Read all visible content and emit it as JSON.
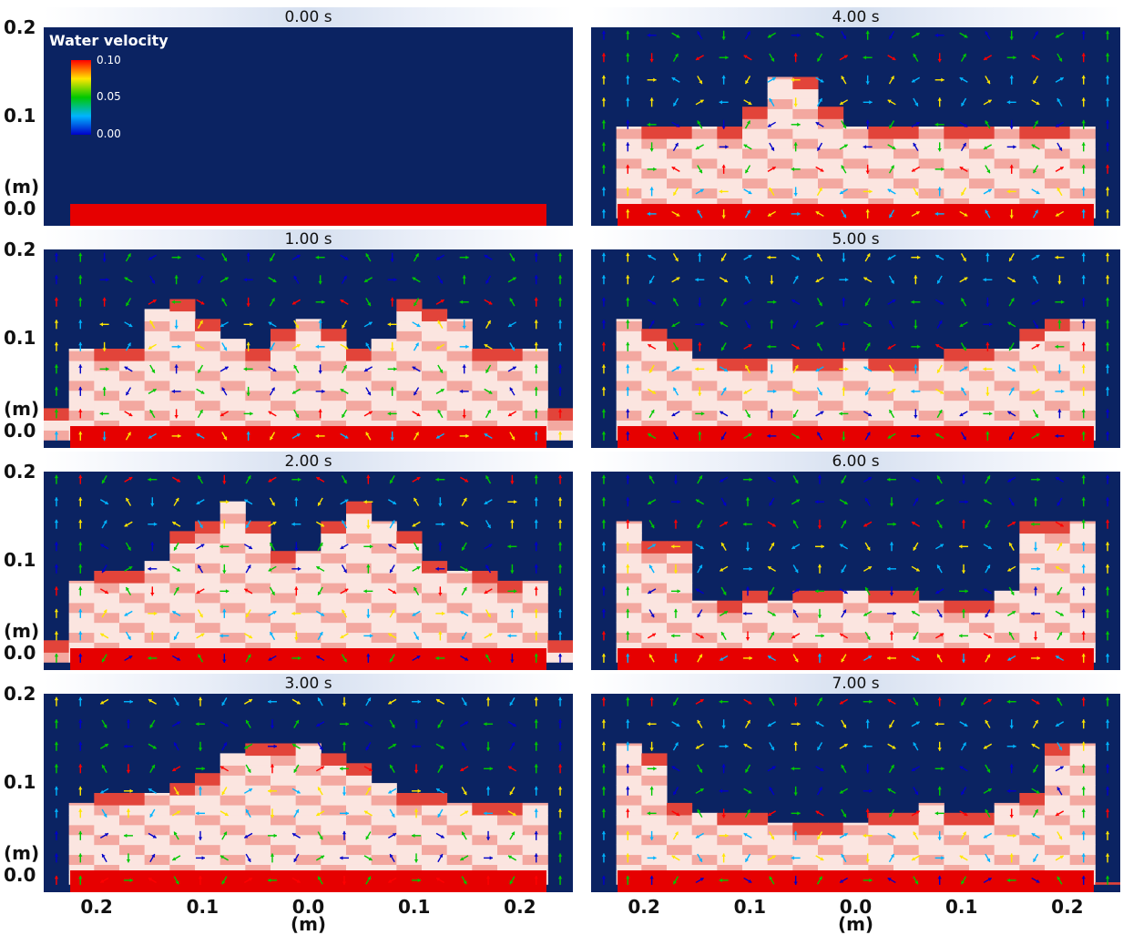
{
  "chart_data": {
    "type": "heatmap",
    "description_units": "vector field over tank cross-section",
    "colorbar": {
      "title": "Water velocity",
      "ticks": [
        "0.10",
        "0.05",
        "0.00"
      ],
      "range": [
        0.0,
        0.1
      ],
      "colors": [
        "#0000c8",
        "#00b4ff",
        "#00c800",
        "#ffe600",
        "#ff0000"
      ]
    },
    "colors": {
      "background": "#0b2362",
      "bed": "#e60000",
      "sediment_light": "#fbe5e0",
      "sediment_mid": "#f3a8a0",
      "sediment_dark": "#e2443a"
    },
    "y_axis": {
      "ticks": [
        "0.2",
        "0.1",
        "(m)",
        "0.0"
      ],
      "range": [
        0.0,
        0.2
      ]
    },
    "x_axis": {
      "ticks": [
        "0.2",
        "0.1",
        "0.0",
        "0.1",
        "0.2"
      ],
      "label": "(m)",
      "range": [
        -0.25,
        0.25
      ]
    },
    "panels": [
      {
        "time": "0.00 s",
        "arrows": false,
        "profile": []
      },
      {
        "time": "1.00 s",
        "arrows": true,
        "profile": [
          0.04,
          0.1,
          0.1,
          0.1,
          0.14,
          0.15,
          0.13,
          0.11,
          0.1,
          0.12,
          0.13,
          0.12,
          0.1,
          0.11,
          0.15,
          0.14,
          0.13,
          0.1,
          0.1,
          0.1,
          0.04
        ]
      },
      {
        "time": "2.00 s",
        "arrows": true,
        "profile": [
          0.03,
          0.09,
          0.1,
          0.1,
          0.11,
          0.14,
          0.15,
          0.17,
          0.15,
          0.12,
          0.12,
          0.15,
          0.17,
          0.15,
          0.14,
          0.11,
          0.1,
          0.1,
          0.09,
          0.09,
          0.03
        ]
      },
      {
        "time": "3.00 s",
        "arrows": true,
        "profile": [
          0.0,
          0.09,
          0.1,
          0.1,
          0.1,
          0.11,
          0.12,
          0.14,
          0.15,
          0.15,
          0.15,
          0.14,
          0.13,
          0.11,
          0.1,
          0.1,
          0.09,
          0.09,
          0.09,
          0.09,
          0.0
        ]
      },
      {
        "time": "4.00 s",
        "arrows": true,
        "profile": [
          0.0,
          0.1,
          0.1,
          0.1,
          0.1,
          0.1,
          0.12,
          0.15,
          0.15,
          0.12,
          0.1,
          0.1,
          0.1,
          0.1,
          0.1,
          0.1,
          0.1,
          0.1,
          0.1,
          0.1,
          0.0
        ]
      },
      {
        "time": "5.00 s",
        "arrows": true,
        "profile": [
          0.0,
          0.13,
          0.12,
          0.11,
          0.09,
          0.09,
          0.09,
          0.09,
          0.09,
          0.09,
          0.09,
          0.09,
          0.09,
          0.09,
          0.1,
          0.1,
          0.1,
          0.12,
          0.13,
          0.13,
          0.0
        ]
      },
      {
        "time": "6.00 s",
        "arrows": true,
        "profile": [
          0.0,
          0.15,
          0.13,
          0.13,
          0.07,
          0.07,
          0.08,
          0.07,
          0.08,
          0.08,
          0.08,
          0.08,
          0.08,
          0.07,
          0.07,
          0.07,
          0.08,
          0.15,
          0.15,
          0.15,
          0.0
        ]
      },
      {
        "time": "7.00 s",
        "arrows": true,
        "profile": [
          0.0,
          0.15,
          0.14,
          0.09,
          0.08,
          0.08,
          0.08,
          0.07,
          0.07,
          0.07,
          0.07,
          0.08,
          0.08,
          0.09,
          0.08,
          0.08,
          0.09,
          0.1,
          0.15,
          0.15,
          0.01
        ]
      }
    ]
  }
}
